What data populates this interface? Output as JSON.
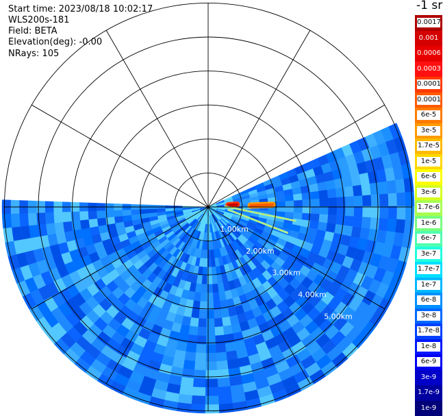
{
  "info": {
    "start_time": "Start time: 2023/08/18 10:02:17",
    "instrument": "WLS200s-181",
    "field": "Field: BETA",
    "elevation": "Elevation(deg): -0.00",
    "nrays": "NRays: 105"
  },
  "colorbar": {
    "unit_label": "-1 sr",
    "labels": [
      "0.0017",
      "0.001",
      "0.0006",
      "0.0003",
      "0.00017",
      "0.0001",
      "6e-5",
      "3e-5",
      "1.7e-5",
      "1e-5",
      "6e-6",
      "3e-6",
      "1.7e-6",
      "1e-6",
      "6e-7",
      "3e-7",
      "1.7e-7",
      "1e-7",
      "6e-8",
      "3e-8",
      "1.7e-8",
      "1e-8",
      "6e-9",
      "3e-9",
      "1.7e-9",
      "1e-9"
    ],
    "colors": [
      "#b00000",
      "#d40000",
      "#e80000",
      "#ff1010",
      "#ff3a00",
      "#ff5a00",
      "#ff7a00",
      "#ff9a00",
      "#ffba00",
      "#ffd800",
      "#ffff00",
      "#d8ff20",
      "#a8ff50",
      "#78ff80",
      "#50ffb0",
      "#20ffe0",
      "#00e0ff",
      "#00b8ff",
      "#0090ff",
      "#0068ff",
      "#0040ff",
      "#0018ff",
      "#0000f0",
      "#0000c8",
      "#0000a0",
      "#000078"
    ]
  },
  "chart_data": {
    "type": "heatmap",
    "title": "",
    "plot": "PPI polar plot of attenuated backscatter (BETA)",
    "range_rings_km": [
      1.0,
      2.0,
      3.0,
      4.0,
      5.0
    ],
    "range_ring_labels": [
      "1.00km",
      "2.00km",
      "3.00km",
      "4.00km",
      "5.00km"
    ],
    "range_rings_unlabelled_km": [
      6.0
    ],
    "angular_grid_deg": 30,
    "scan_azimuth_deg": [
      -24,
      182
    ],
    "azimuth_convention": "degrees clockwise from +x axis (east), screen y down",
    "max_range_km": 6.07,
    "background_level": "1e-8 to 1e-7",
    "features": [
      {
        "name": "elevated return near 0.7km",
        "azimuth_deg": -5,
        "range_km": [
          0.6,
          0.85
        ],
        "level": "0.0003-0.001"
      },
      {
        "name": "elevated return near 1.5km",
        "azimuth_deg": -2,
        "range_km": [
          1.25,
          1.9
        ],
        "level": "3e-5-1e-4"
      },
      {
        "name": "linear target A",
        "azimuth_deg": [
          -2,
          9
        ],
        "range_km": [
          0.5,
          2.6
        ],
        "level": "3e-7-1.7e-6"
      },
      {
        "name": "linear target B",
        "azimuth_deg": [
          8,
          18
        ],
        "range_km": [
          0.6,
          2.45
        ],
        "level": "3e-7-1.7e-6"
      }
    ]
  }
}
